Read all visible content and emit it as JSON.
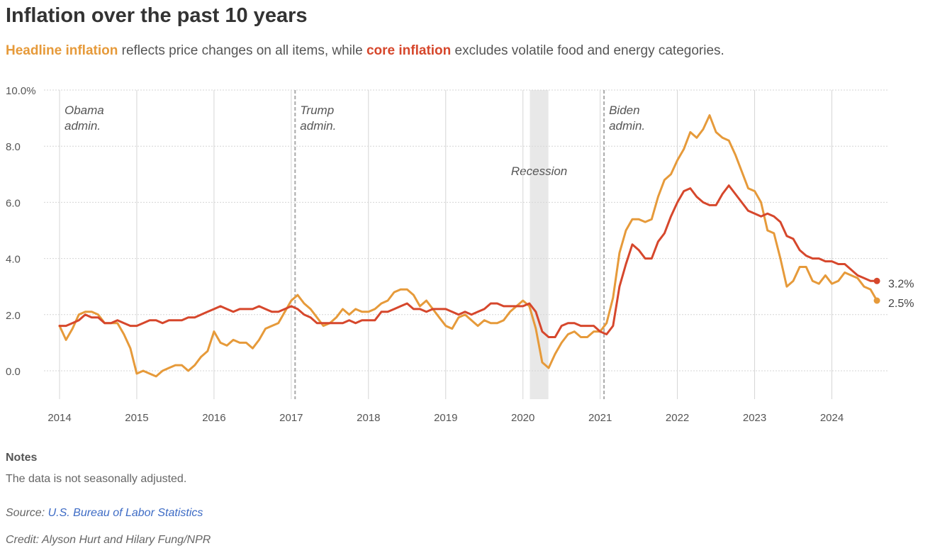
{
  "header": {
    "title": "Inflation over the past 10 years",
    "subtitle_headline": "Headline inflation",
    "subtitle_mid": " reflects price changes on all items, while ",
    "subtitle_core": "core inflation",
    "subtitle_end": " excludes volatile food and energy categories."
  },
  "colors": {
    "headline": "#e69a3a",
    "core": "#d6472c",
    "grid": "#d5d5d5",
    "recession": "#e8e8e8",
    "admin_line": "#aaaaaa"
  },
  "chart_data": {
    "type": "line",
    "title": "Inflation over the past 10 years",
    "xlabel": "",
    "ylabel": "",
    "xlim": [
      2014,
      2024.75
    ],
    "ylim": [
      -1,
      10
    ],
    "grid": true,
    "x_ticks": [
      "2014",
      "2015",
      "2016",
      "2017",
      "2018",
      "2019",
      "2020",
      "2021",
      "2022",
      "2023",
      "2024"
    ],
    "y_ticks": [
      {
        "value": 10,
        "label": "10.0%"
      },
      {
        "value": 8,
        "label": "8.0"
      },
      {
        "value": 6,
        "label": "6.0"
      },
      {
        "value": 4,
        "label": "4.0"
      },
      {
        "value": 2,
        "label": "2.0"
      },
      {
        "value": 0,
        "label": "0.0"
      }
    ],
    "start": "2014-01",
    "series": [
      {
        "name": "Headline inflation",
        "color": "#e69a3a",
        "end_label": "2.5%",
        "values": [
          1.6,
          1.1,
          1.5,
          2.0,
          2.1,
          2.1,
          2.0,
          1.7,
          1.7,
          1.7,
          1.3,
          0.8,
          -0.1,
          0.0,
          -0.1,
          -0.2,
          0.0,
          0.1,
          0.2,
          0.2,
          0.0,
          0.2,
          0.5,
          0.7,
          1.4,
          1.0,
          0.9,
          1.1,
          1.0,
          1.0,
          0.8,
          1.1,
          1.5,
          1.6,
          1.7,
          2.1,
          2.5,
          2.7,
          2.4,
          2.2,
          1.9,
          1.6,
          1.7,
          1.9,
          2.2,
          2.0,
          2.2,
          2.1,
          2.1,
          2.2,
          2.4,
          2.5,
          2.8,
          2.9,
          2.9,
          2.7,
          2.3,
          2.5,
          2.2,
          1.9,
          1.6,
          1.5,
          1.9,
          2.0,
          1.8,
          1.6,
          1.8,
          1.7,
          1.7,
          1.8,
          2.1,
          2.3,
          2.5,
          2.3,
          1.5,
          0.3,
          0.1,
          0.6,
          1.0,
          1.3,
          1.4,
          1.2,
          1.2,
          1.4,
          1.4,
          1.7,
          2.6,
          4.2,
          5.0,
          5.4,
          5.4,
          5.3,
          5.4,
          6.2,
          6.8,
          7.0,
          7.5,
          7.9,
          8.5,
          8.3,
          8.6,
          9.1,
          8.5,
          8.3,
          8.2,
          7.7,
          7.1,
          6.5,
          6.4,
          6.0,
          5.0,
          4.9,
          4.0,
          3.0,
          3.2,
          3.7,
          3.7,
          3.2,
          3.1,
          3.4,
          3.1,
          3.2,
          3.5,
          3.4,
          3.3,
          3.0,
          2.9,
          2.5
        ]
      },
      {
        "name": "Core inflation",
        "color": "#d6472c",
        "end_label": "3.2%",
        "values": [
          1.6,
          1.6,
          1.7,
          1.8,
          2.0,
          1.9,
          1.9,
          1.7,
          1.7,
          1.8,
          1.7,
          1.6,
          1.6,
          1.7,
          1.8,
          1.8,
          1.7,
          1.8,
          1.8,
          1.8,
          1.9,
          1.9,
          2.0,
          2.1,
          2.2,
          2.3,
          2.2,
          2.1,
          2.2,
          2.2,
          2.2,
          2.3,
          2.2,
          2.1,
          2.1,
          2.2,
          2.3,
          2.2,
          2.0,
          1.9,
          1.7,
          1.7,
          1.7,
          1.7,
          1.7,
          1.8,
          1.7,
          1.8,
          1.8,
          1.8,
          2.1,
          2.1,
          2.2,
          2.3,
          2.4,
          2.2,
          2.2,
          2.1,
          2.2,
          2.2,
          2.2,
          2.1,
          2.0,
          2.1,
          2.0,
          2.1,
          2.2,
          2.4,
          2.4,
          2.3,
          2.3,
          2.3,
          2.3,
          2.4,
          2.1,
          1.4,
          1.2,
          1.2,
          1.6,
          1.7,
          1.7,
          1.6,
          1.6,
          1.6,
          1.4,
          1.3,
          1.6,
          3.0,
          3.8,
          4.5,
          4.3,
          4.0,
          4.0,
          4.6,
          4.9,
          5.5,
          6.0,
          6.4,
          6.5,
          6.2,
          6.0,
          5.9,
          5.9,
          6.3,
          6.6,
          6.3,
          6.0,
          5.7,
          5.6,
          5.5,
          5.6,
          5.5,
          5.3,
          4.8,
          4.7,
          4.3,
          4.1,
          4.0,
          4.0,
          3.9,
          3.9,
          3.8,
          3.8,
          3.6,
          3.4,
          3.3,
          3.2,
          3.2
        ]
      }
    ],
    "shaded_regions": [
      {
        "label": "Recession",
        "x_start": 2020.09,
        "x_end": 2020.33
      }
    ],
    "annotations": [
      {
        "line1": "Obama",
        "line2": "admin.",
        "x": 2014.0,
        "dashed_line": false
      },
      {
        "line1": "Trump",
        "line2": "admin.",
        "x": 2017.05,
        "dashed_line": true
      },
      {
        "line1": "Biden",
        "line2": "admin.",
        "x": 2021.05,
        "dashed_line": true
      }
    ]
  },
  "notes": {
    "heading": "Notes",
    "text": "The data is not seasonally adjusted."
  },
  "source": {
    "label": "Source: ",
    "link_text": "U.S. Bureau of Labor Statistics"
  },
  "credit": "Credit: Alyson Hurt and Hilary Fung/NPR"
}
